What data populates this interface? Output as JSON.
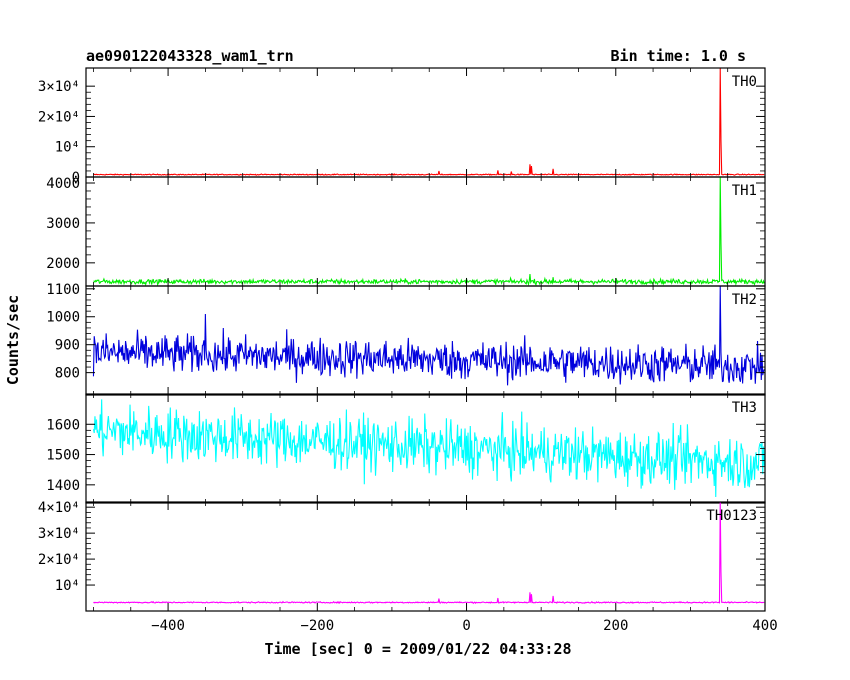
{
  "title_left": "ae090122043328_wam1_trn",
  "title_right": "Bin time: 1.0 s",
  "ylabel": "Counts/sec",
  "xlabel": "Time [sec] 0 = 2009/01/22 04:33:28",
  "chart_data": {
    "type": "line",
    "x_range": [
      -510,
      400
    ],
    "x_ticks": [
      -400,
      -200,
      0,
      200,
      400
    ],
    "x_tick_labels": [
      "−400",
      "−200",
      "0",
      "200",
      "400"
    ],
    "x_data_range": [
      -500,
      399
    ],
    "grid": false,
    "panels": [
      {
        "name": "TH0",
        "color": "#ff0000",
        "ylim": [
          0,
          36000
        ],
        "y_ticks": [
          0,
          10000,
          20000,
          30000
        ],
        "y_tick_labels": [
          "0",
          "10⁴",
          "2×10⁴",
          "3×10⁴"
        ],
        "baseline": 800,
        "noise": 80,
        "trend": 0,
        "spikes": [
          {
            "x": -37,
            "y": 2000
          },
          {
            "x": 42,
            "y": 2200
          },
          {
            "x": 60,
            "y": 1800
          },
          {
            "x": 85,
            "y": 4200
          },
          {
            "x": 87,
            "y": 3600
          },
          {
            "x": 116,
            "y": 2700
          },
          {
            "x": 340,
            "y": 36000
          },
          {
            "x": 341,
            "y": 12000
          }
        ]
      },
      {
        "name": "TH1",
        "color": "#00ee00",
        "ylim": [
          1420,
          4150
        ],
        "y_ticks": [
          2000,
          3000,
          4000
        ],
        "y_ticks_minor": [
          1000
        ],
        "y_tick_labels": [
          "2000",
          "3000",
          "4000"
        ],
        "baseline": 1530,
        "noise": 30,
        "trend": 0,
        "spikes": [
          {
            "x": 85,
            "y": 1720
          },
          {
            "x": 116,
            "y": 1640
          },
          {
            "x": 340,
            "y": 4150
          },
          {
            "x": 341,
            "y": 2500
          }
        ]
      },
      {
        "name": "TH2",
        "color": "#0000dd",
        "ylim": [
          720,
          1110
        ],
        "y_ticks": [
          800,
          900,
          1000,
          1100
        ],
        "y_tick_labels": [
          "800",
          "900",
          "1000",
          "1100"
        ],
        "baseline": 872,
        "noise": 35,
        "trend": -50,
        "spikes": [
          {
            "x": -350,
            "y": 1010
          },
          {
            "x": 340,
            "y": 1110
          }
        ]
      },
      {
        "name": "TH3",
        "color": "#00ffff",
        "ylim": [
          1340,
          1700
        ],
        "y_ticks": [
          1400,
          1500,
          1600
        ],
        "y_tick_labels": [
          "1400",
          "1500",
          "1600"
        ],
        "baseline": 1580,
        "noise": 45,
        "trend": -110,
        "spikes": []
      },
      {
        "name": "TH0123",
        "color": "#ff00ff",
        "ylim": [
          0,
          42000
        ],
        "y_ticks": [
          10000,
          20000,
          30000,
          40000
        ],
        "y_tick_labels": [
          "10⁴",
          "2×10⁴",
          "3×10⁴",
          "4×10⁴"
        ],
        "baseline": 3300,
        "noise": 120,
        "trend": 0,
        "spikes": [
          {
            "x": -37,
            "y": 4800
          },
          {
            "x": 42,
            "y": 5000
          },
          {
            "x": 85,
            "y": 7200
          },
          {
            "x": 87,
            "y": 6500
          },
          {
            "x": 116,
            "y": 5800
          },
          {
            "x": 340,
            "y": 42000
          },
          {
            "x": 341,
            "y": 15000
          }
        ]
      }
    ]
  }
}
